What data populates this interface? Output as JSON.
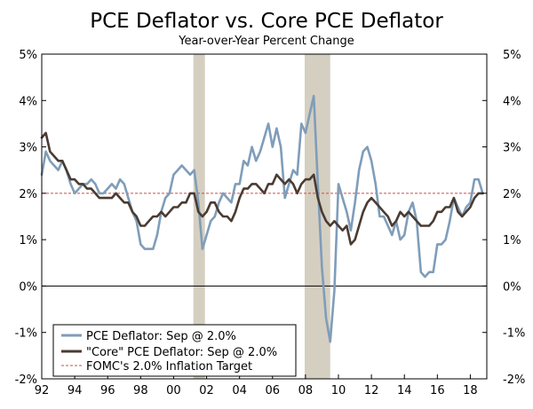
{
  "chart_data": {
    "type": "line",
    "title": "PCE Deflator vs. Core PCE Deflator",
    "subtitle": "Year-over-Year Percent Change",
    "xlabel": "",
    "ylabel": "",
    "xlim": [
      1992,
      2019
    ],
    "ylim": [
      -2,
      5
    ],
    "x_ticks": [
      {
        "value": 1992,
        "label": "92"
      },
      {
        "value": 1994,
        "label": "94"
      },
      {
        "value": 1996,
        "label": "96"
      },
      {
        "value": 1998,
        "label": "98"
      },
      {
        "value": 2000,
        "label": "00"
      },
      {
        "value": 2002,
        "label": "02"
      },
      {
        "value": 2004,
        "label": "04"
      },
      {
        "value": 2006,
        "label": "06"
      },
      {
        "value": 2008,
        "label": "08"
      },
      {
        "value": 2010,
        "label": "10"
      },
      {
        "value": 2012,
        "label": "12"
      },
      {
        "value": 2014,
        "label": "14"
      },
      {
        "value": 2016,
        "label": "16"
      },
      {
        "value": 2018,
        "label": "18"
      }
    ],
    "y_ticks": [
      {
        "value": 5,
        "label": "5%"
      },
      {
        "value": 4,
        "label": "4%"
      },
      {
        "value": 3,
        "label": "3%"
      },
      {
        "value": 2,
        "label": "2%"
      },
      {
        "value": 1,
        "label": "1%"
      },
      {
        "value": 0,
        "label": "0%"
      },
      {
        "value": -1,
        "label": "-1%"
      },
      {
        "value": -2,
        "label": "-2%"
      }
    ],
    "recessions": [
      [
        2001.2,
        2001.9
      ],
      [
        2007.95,
        2009.5
      ]
    ],
    "target": {
      "value": 2.0,
      "label": "FOMC's 2.0% Inflation Target",
      "color": "#c0504d"
    },
    "legend_position": "bottom-left",
    "series": [
      {
        "name": "PCE Deflator: Sep @ 2.0%",
        "color": "#7f9db9",
        "x": [
          1992.0,
          1992.25,
          1992.5,
          1992.75,
          1993.0,
          1993.25,
          1993.5,
          1993.75,
          1994.0,
          1994.25,
          1994.5,
          1994.75,
          1995.0,
          1995.25,
          1995.5,
          1995.75,
          1996.0,
          1996.25,
          1996.5,
          1996.75,
          1997.0,
          1997.25,
          1997.5,
          1997.75,
          1998.0,
          1998.25,
          1998.5,
          1998.75,
          1999.0,
          1999.25,
          1999.5,
          1999.75,
          2000.0,
          2000.25,
          2000.5,
          2000.75,
          2001.0,
          2001.25,
          2001.5,
          2001.75,
          2002.0,
          2002.25,
          2002.5,
          2002.75,
          2003.0,
          2003.25,
          2003.5,
          2003.75,
          2004.0,
          2004.25,
          2004.5,
          2004.75,
          2005.0,
          2005.25,
          2005.5,
          2005.75,
          2006.0,
          2006.25,
          2006.5,
          2006.75,
          2007.0,
          2007.25,
          2007.5,
          2007.75,
          2008.0,
          2008.25,
          2008.5,
          2008.75,
          2009.0,
          2009.25,
          2009.5,
          2009.75,
          2010.0,
          2010.25,
          2010.5,
          2010.75,
          2011.0,
          2011.25,
          2011.5,
          2011.75,
          2012.0,
          2012.25,
          2012.5,
          2012.75,
          2013.0,
          2013.25,
          2013.5,
          2013.75,
          2014.0,
          2014.25,
          2014.5,
          2014.75,
          2015.0,
          2015.25,
          2015.5,
          2015.75,
          2016.0,
          2016.25,
          2016.5,
          2016.75,
          2017.0,
          2017.25,
          2017.5,
          2017.75,
          2018.0,
          2018.25,
          2018.5,
          2018.75
        ],
        "values": [
          2.4,
          2.9,
          2.7,
          2.6,
          2.5,
          2.7,
          2.5,
          2.2,
          2.0,
          2.1,
          2.2,
          2.2,
          2.3,
          2.2,
          2.0,
          2.0,
          2.1,
          2.2,
          2.1,
          2.3,
          2.2,
          1.9,
          1.6,
          1.4,
          0.9,
          0.8,
          0.8,
          0.8,
          1.1,
          1.6,
          1.9,
          2.0,
          2.4,
          2.5,
          2.6,
          2.5,
          2.4,
          2.5,
          1.8,
          0.8,
          1.1,
          1.4,
          1.5,
          1.8,
          2.0,
          1.9,
          1.8,
          2.2,
          2.2,
          2.7,
          2.6,
          3.0,
          2.7,
          2.9,
          3.2,
          3.5,
          3.0,
          3.4,
          3.0,
          1.9,
          2.2,
          2.5,
          2.4,
          3.5,
          3.3,
          3.7,
          4.1,
          2.2,
          0.4,
          -0.7,
          -1.2,
          -0.1,
          2.2,
          1.9,
          1.6,
          1.2,
          1.8,
          2.5,
          2.9,
          3.0,
          2.7,
          2.2,
          1.5,
          1.5,
          1.3,
          1.1,
          1.4,
          1.0,
          1.1,
          1.6,
          1.8,
          1.4,
          0.3,
          0.2,
          0.3,
          0.3,
          0.9,
          0.9,
          1.0,
          1.4,
          1.9,
          1.7,
          1.5,
          1.7,
          1.8,
          2.3,
          2.3,
          2.0
        ]
      },
      {
        "name": "\"Core\" PCE Deflator: Sep @ 2.0%",
        "color": "#4a3b32",
        "x": [
          1992.0,
          1992.25,
          1992.5,
          1992.75,
          1993.0,
          1993.25,
          1993.5,
          1993.75,
          1994.0,
          1994.25,
          1994.5,
          1994.75,
          1995.0,
          1995.25,
          1995.5,
          1995.75,
          1996.0,
          1996.25,
          1996.5,
          1996.75,
          1997.0,
          1997.25,
          1997.5,
          1997.75,
          1998.0,
          1998.25,
          1998.5,
          1998.75,
          1999.0,
          1999.25,
          1999.5,
          1999.75,
          2000.0,
          2000.25,
          2000.5,
          2000.75,
          2001.0,
          2001.25,
          2001.5,
          2001.75,
          2002.0,
          2002.25,
          2002.5,
          2002.75,
          2003.0,
          2003.25,
          2003.5,
          2003.75,
          2004.0,
          2004.25,
          2004.5,
          2004.75,
          2005.0,
          2005.25,
          2005.5,
          2005.75,
          2006.0,
          2006.25,
          2006.5,
          2006.75,
          2007.0,
          2007.25,
          2007.5,
          2007.75,
          2008.0,
          2008.25,
          2008.5,
          2008.75,
          2009.0,
          2009.25,
          2009.5,
          2009.75,
          2010.0,
          2010.25,
          2010.5,
          2010.75,
          2011.0,
          2011.25,
          2011.5,
          2011.75,
          2012.0,
          2012.25,
          2012.5,
          2012.75,
          2013.0,
          2013.25,
          2013.5,
          2013.75,
          2014.0,
          2014.25,
          2014.5,
          2014.75,
          2015.0,
          2015.25,
          2015.5,
          2015.75,
          2016.0,
          2016.25,
          2016.5,
          2016.75,
          2017.0,
          2017.25,
          2017.5,
          2017.75,
          2018.0,
          2018.25,
          2018.5,
          2018.75
        ],
        "values": [
          3.2,
          3.3,
          2.9,
          2.8,
          2.7,
          2.7,
          2.5,
          2.3,
          2.3,
          2.2,
          2.2,
          2.1,
          2.1,
          2.0,
          1.9,
          1.9,
          1.9,
          1.9,
          2.0,
          1.9,
          1.8,
          1.8,
          1.6,
          1.5,
          1.3,
          1.3,
          1.4,
          1.5,
          1.5,
          1.6,
          1.5,
          1.6,
          1.7,
          1.7,
          1.8,
          1.8,
          2.0,
          2.0,
          1.6,
          1.5,
          1.6,
          1.8,
          1.8,
          1.6,
          1.5,
          1.5,
          1.4,
          1.6,
          1.9,
          2.1,
          2.1,
          2.2,
          2.2,
          2.1,
          2.0,
          2.2,
          2.2,
          2.4,
          2.3,
          2.2,
          2.3,
          2.2,
          2.0,
          2.2,
          2.3,
          2.3,
          2.4,
          1.9,
          1.6,
          1.4,
          1.3,
          1.4,
          1.3,
          1.2,
          1.3,
          0.9,
          1.0,
          1.3,
          1.6,
          1.8,
          1.9,
          1.8,
          1.7,
          1.6,
          1.5,
          1.3,
          1.4,
          1.6,
          1.5,
          1.6,
          1.5,
          1.4,
          1.3,
          1.3,
          1.3,
          1.4,
          1.6,
          1.6,
          1.7,
          1.7,
          1.9,
          1.6,
          1.5,
          1.6,
          1.7,
          1.9,
          2.0,
          2.0
        ]
      }
    ]
  }
}
